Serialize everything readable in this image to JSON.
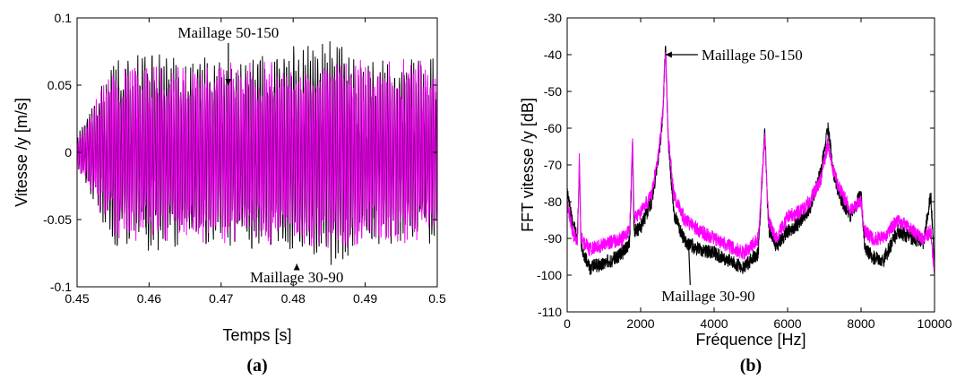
{
  "colors": {
    "series_black": "#000000",
    "series_magenta": "#ff00ff"
  },
  "chart_data": [
    {
      "type": "line",
      "panel_label": "(a)",
      "xlabel": "Temps [s]",
      "ylabel": "Vitesse  /y [m/s]",
      "xlim": [
        0.45,
        0.5
      ],
      "ylim": [
        -0.1,
        0.1
      ],
      "xticks": [
        "0.45",
        "0.46",
        "0.47",
        "0.48",
        "0.49",
        "0.5"
      ],
      "yticks": [
        "-0.1",
        "-0.05",
        "0",
        "0.05",
        "0.1"
      ],
      "grid": false,
      "signal": {
        "x_start": 0.45,
        "x_end": 0.5,
        "approx_cycles": 150,
        "black_envelope": {
          "t": [
            0.45,
            0.455,
            0.46,
            0.47,
            0.48,
            0.485,
            0.49,
            0.5
          ],
          "amp": [
            0.012,
            0.072,
            0.075,
            0.072,
            0.08,
            0.088,
            0.072,
            0.07
          ]
        },
        "magenta_envelope": {
          "t": [
            0.45,
            0.455,
            0.46,
            0.47,
            0.48,
            0.485,
            0.49,
            0.5
          ],
          "amp": [
            0.012,
            0.065,
            0.068,
            0.068,
            0.07,
            0.075,
            0.07,
            0.07
          ]
        }
      },
      "annotations": [
        {
          "text": "Maillage 50-150",
          "x": 0.471,
          "y": 0.05
        },
        {
          "text": "Maillage 30-90",
          "x": 0.4805,
          "y": -0.083
        }
      ]
    },
    {
      "type": "line",
      "panel_label": "(b)",
      "xlabel": "Fréquence [Hz]",
      "ylabel": "FFT vitesse /y [dB]",
      "xlim": [
        0,
        10000
      ],
      "ylim": [
        -110,
        -30
      ],
      "xticks": [
        "0",
        "2000",
        "4000",
        "6000",
        "8000",
        "10000"
      ],
      "yticks": [
        "-30",
        "-40",
        "-50",
        "-60",
        "-70",
        "-80",
        "-90",
        "-100",
        "-110"
      ],
      "grid": false,
      "series": [
        {
          "x": [
            0,
            150,
            280,
            330,
            380,
            600,
            900,
            1200,
            1500,
            1700,
            1780,
            1820,
            2000,
            2300,
            2500,
            2600,
            2680,
            2750,
            2900,
            3200,
            3600,
            4000,
            4400,
            4800,
            5000,
            5200,
            5380,
            5450,
            5500,
            5700,
            6000,
            6300,
            6600,
            6900,
            7100,
            7250,
            7400,
            7700,
            8000,
            8100,
            8300,
            8600,
            9000,
            9400,
            9700,
            9900,
            10000
          ],
          "y": [
            -78,
            -86,
            -90,
            -70,
            -92,
            -98,
            -97,
            -96,
            -94,
            -91,
            -64,
            -88,
            -87,
            -80,
            -67,
            -57,
            -37,
            -64,
            -83,
            -91,
            -93,
            -94,
            -96,
            -98,
            -96,
            -94,
            -60,
            -80,
            -88,
            -92,
            -88,
            -86,
            -82,
            -72,
            -60,
            -72,
            -78,
            -84,
            -78,
            -92,
            -95,
            -96,
            -88,
            -90,
            -91,
            -78,
            -99
          ]
        },
        {
          "x": [
            0,
            150,
            280,
            330,
            380,
            600,
            900,
            1200,
            1500,
            1700,
            1780,
            1820,
            2000,
            2300,
            2500,
            2600,
            2680,
            2750,
            2900,
            3200,
            3600,
            4000,
            4400,
            4800,
            5000,
            5200,
            5380,
            5450,
            5500,
            5700,
            6000,
            6300,
            6600,
            6900,
            7100,
            7250,
            7400,
            7700,
            8000,
            8100,
            8300,
            8600,
            9000,
            9400,
            9700,
            9900,
            10000
          ],
          "y": [
            -80,
            -88,
            -92,
            -68,
            -90,
            -93,
            -92,
            -91,
            -90,
            -88,
            -63,
            -84,
            -83,
            -78,
            -66,
            -56,
            -38,
            -62,
            -78,
            -85,
            -88,
            -90,
            -92,
            -94,
            -92,
            -90,
            -62,
            -80,
            -86,
            -90,
            -84,
            -83,
            -80,
            -74,
            -64,
            -72,
            -76,
            -82,
            -80,
            -88,
            -90,
            -90,
            -85,
            -88,
            -90,
            -88,
            -100
          ]
        }
      ],
      "annotations": [
        {
          "text": "Maillage 50-150",
          "x": 2680,
          "y": -40
        },
        {
          "text": "Maillage 30-90",
          "x": 3300,
          "y": -90
        }
      ]
    }
  ]
}
